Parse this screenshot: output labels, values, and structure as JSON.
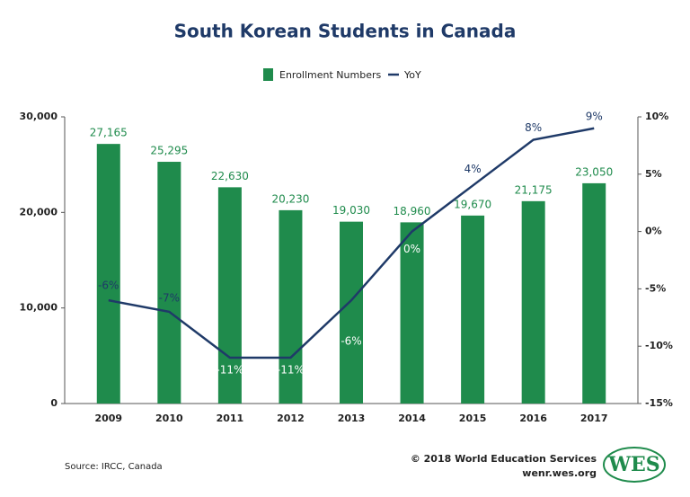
{
  "chart_data": {
    "type": "bar",
    "title": "South Korean Students in Canada",
    "categories": [
      "2009",
      "2010",
      "2011",
      "2012",
      "2013",
      "2014",
      "2015",
      "2016",
      "2017"
    ],
    "series": [
      {
        "name": "Enrollment Numbers",
        "type": "bar",
        "color": "#1f8b4c",
        "values": [
          27165,
          25295,
          22630,
          20230,
          19030,
          18960,
          19670,
          21175,
          23050
        ],
        "value_labels": [
          "27,165",
          "25,295",
          "22,630",
          "20,230",
          "19,030",
          "18,960",
          "19,670",
          "21,175",
          "23,050"
        ]
      },
      {
        "name": "YoY",
        "type": "line",
        "axis": "y2",
        "color": "#1f3a68",
        "values": [
          -6,
          -7,
          -11,
          -11,
          -6,
          0,
          4,
          8,
          9
        ],
        "value_labels": [
          "-6%",
          "-7%",
          "-11%",
          "-11%",
          "-6%",
          "0%",
          "4%",
          "8%",
          "9%"
        ]
      }
    ],
    "ylim": [
      0,
      30000
    ],
    "yticks": [
      {
        "value": 0,
        "label": "0"
      },
      {
        "value": 10000,
        "label": "10,000"
      },
      {
        "value": 20000,
        "label": "20,000"
      },
      {
        "value": 30000,
        "label": "30,000"
      }
    ],
    "y2lim": [
      -15,
      10
    ],
    "y2ticks": [
      {
        "value": -15,
        "label": "-15%"
      },
      {
        "value": -10,
        "label": "-10%"
      },
      {
        "value": -5,
        "label": "-5%"
      },
      {
        "value": 0,
        "label": "0%"
      },
      {
        "value": 5,
        "label": "5%"
      },
      {
        "value": 10,
        "label": "10%"
      }
    ],
    "grid": false,
    "legend": "top",
    "source": "Source: IRCC, Canada",
    "credit": "© 2018 World Education Services",
    "website": "wenr.wes.org",
    "logo": "WES"
  }
}
